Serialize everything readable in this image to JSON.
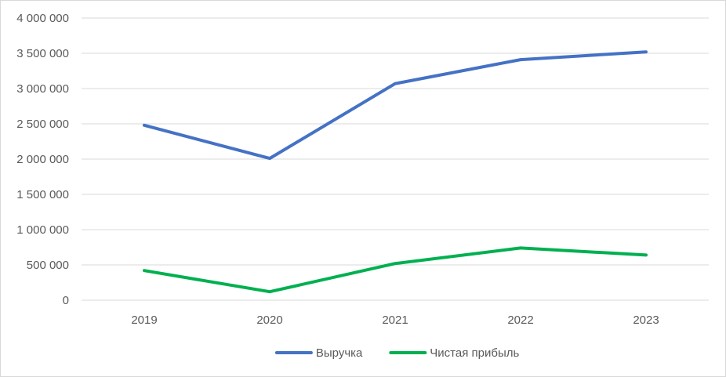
{
  "chart_data": {
    "type": "line",
    "title": "",
    "xlabel": "",
    "ylabel": "",
    "categories": [
      "2019",
      "2020",
      "2021",
      "2022",
      "2023"
    ],
    "ylim": [
      0,
      4000000
    ],
    "y_ticks": [
      0,
      500000,
      1000000,
      1500000,
      2000000,
      2500000,
      3000000,
      3500000,
      4000000
    ],
    "y_tick_labels": [
      "0",
      "500 000",
      "1 000 000",
      "1 500 000",
      "2 000 000",
      "2 500 000",
      "3 000 000",
      "3 500 000",
      "4 000 000"
    ],
    "grid": true,
    "legend_position": "bottom",
    "series": [
      {
        "name": "Выручка",
        "color": "#4472C4",
        "values": [
          2480000,
          2010000,
          3070000,
          3410000,
          3520000
        ]
      },
      {
        "name": "Чистая прибыль",
        "color": "#00B050",
        "values": [
          420000,
          120000,
          520000,
          740000,
          640000
        ]
      }
    ]
  }
}
